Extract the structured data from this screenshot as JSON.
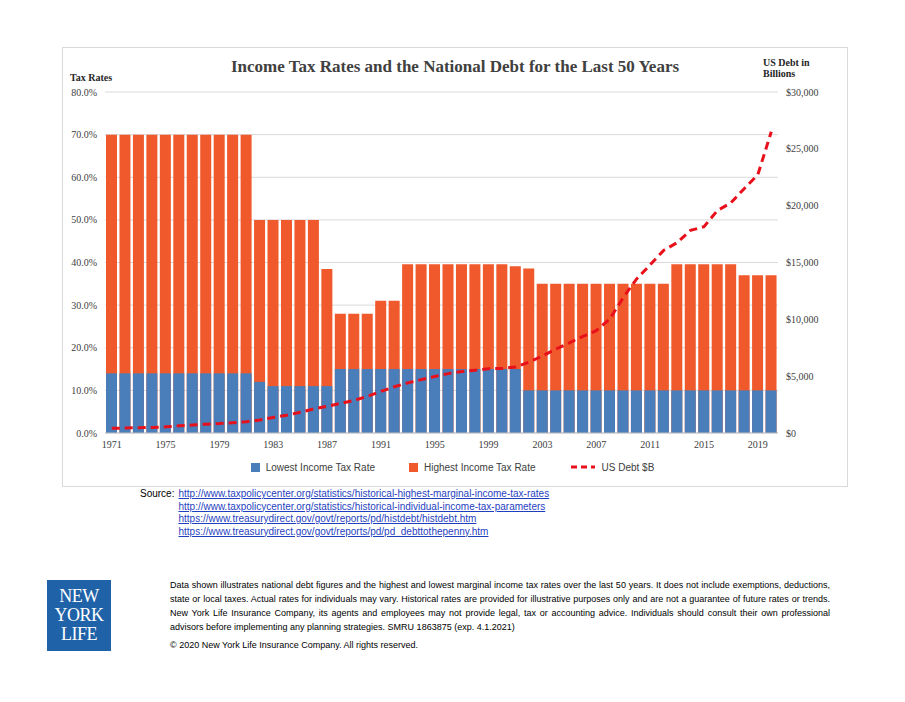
{
  "chart_data": {
    "type": "bar",
    "title": "Income Tax Rates and the National Debt for the Last 50 Years",
    "y_label": "Tax Rates",
    "y2_label": "US Debt in Billions",
    "categories": [
      "1971",
      null,
      null,
      null,
      "1975",
      null,
      null,
      null,
      "1979",
      null,
      null,
      null,
      "1983",
      null,
      null,
      null,
      "1987",
      null,
      null,
      null,
      "1991",
      null,
      null,
      null,
      "1995",
      null,
      null,
      null,
      "1999",
      null,
      null,
      null,
      "2003",
      null,
      null,
      null,
      "2007",
      null,
      null,
      null,
      "2011",
      null,
      null,
      null,
      "2015",
      null,
      null,
      null,
      "2019",
      null
    ],
    "series": [
      {
        "name": "Lowest Income Tax Rate",
        "type": "bar",
        "color": "#4a7ebb",
        "values": [
          14,
          14,
          14,
          14,
          14,
          14,
          14,
          14,
          14,
          14,
          14,
          12,
          11,
          11,
          11,
          11,
          11,
          15,
          15,
          15,
          15,
          15,
          15,
          15,
          15,
          15,
          15,
          15,
          15,
          15,
          15,
          10,
          10,
          10,
          10,
          10,
          10,
          10,
          10,
          10,
          10,
          10,
          10,
          10,
          10,
          10,
          10,
          10,
          10,
          10
        ]
      },
      {
        "name": "Highest Income Tax Rate",
        "type": "bar",
        "color": "#f0592b",
        "values": [
          70,
          70,
          70,
          70,
          70,
          70,
          70,
          70,
          70,
          70,
          70,
          50,
          50,
          50,
          50,
          50,
          38.5,
          28,
          28,
          28,
          31,
          31,
          39.6,
          39.6,
          39.6,
          39.6,
          39.6,
          39.6,
          39.6,
          39.6,
          39.1,
          38.6,
          35,
          35,
          35,
          35,
          35,
          35,
          35,
          35,
          35,
          35,
          39.6,
          39.6,
          39.6,
          39.6,
          39.6,
          37,
          37,
          37
        ]
      },
      {
        "name": "US Debt $B",
        "type": "line",
        "axis": "y2",
        "color": "#e8101a",
        "line_style": "dashed",
        "marker": "none",
        "values": [
          408,
          436,
          466,
          484,
          542,
          629,
          706,
          777,
          829,
          909,
          995,
          1137,
          1372,
          1565,
          1818,
          2121,
          2346,
          2602,
          2857,
          3233,
          3665,
          4065,
          4411,
          4693,
          4974,
          5225,
          5413,
          5526,
          5656,
          5674,
          5807,
          6228,
          6783,
          7379,
          7933,
          8507,
          9008,
          10025,
          11910,
          13562,
          14790,
          16066,
          16738,
          17824,
          18151,
          19573,
          20245,
          21516,
          22719,
          26500
        ]
      }
    ],
    "ylim": [
      0,
      80
    ],
    "yticks": [
      {
        "value": 0,
        "label": "0.0%"
      },
      {
        "value": 10,
        "label": "10.0%"
      },
      {
        "value": 20,
        "label": "20.0%"
      },
      {
        "value": 30,
        "label": "30.0%"
      },
      {
        "value": 40,
        "label": "40.0%"
      },
      {
        "value": 50,
        "label": "50.0%"
      },
      {
        "value": 60,
        "label": "60.0%"
      },
      {
        "value": 70,
        "label": "70.0%"
      },
      {
        "value": 80,
        "label": "80.0%"
      }
    ],
    "y2lim": [
      0,
      30000
    ],
    "y2ticks": [
      {
        "value": 0,
        "label": "$0"
      },
      {
        "value": 5000,
        "label": "$5,000"
      },
      {
        "value": 10000,
        "label": "$10,000"
      },
      {
        "value": 15000,
        "label": "$15,000"
      },
      {
        "value": 20000,
        "label": "$20,000"
      },
      {
        "value": 25000,
        "label": "$25,000"
      },
      {
        "value": 30000,
        "label": "$30,000"
      }
    ],
    "grid": true,
    "legend": "bottom"
  },
  "notes": {
    "source_label": "Source:",
    "sources": [
      "http://www.taxpolicycenter.org/statistics/historical-highest-marginal-income-tax-rates",
      "http://www.taxpolicycenter.org/statistics/historical-individual-income-tax-parameters",
      "https://www.treasurydirect.gov/govt/reports/pd/histdebt/histdebt.htm",
      "https://www.treasurydirect.gov/govt/reports/pd/pd_debttothepenny.htm"
    ],
    "disclaimer": "Data shown illustrates national debt figures and the highest and lowest marginal income tax rates over the last 50 years. It does not include exemptions, deductions, state or local taxes. Actual rates for individuals may vary. Historical rates are provided for illustrative purposes only and are not a guarantee of future rates or trends. New York Life Insurance Company, its agents and employees may not provide legal, tax or accounting advice. Individuals should consult their own professional advisors before implementing any planning strategies.  SMRU 1863875 (exp. 4.1.2021)",
    "copyright": "© 2020 New York Life Insurance Company. All rights reserved.",
    "logo": [
      "NEW",
      "YORK",
      "LIFE"
    ]
  }
}
